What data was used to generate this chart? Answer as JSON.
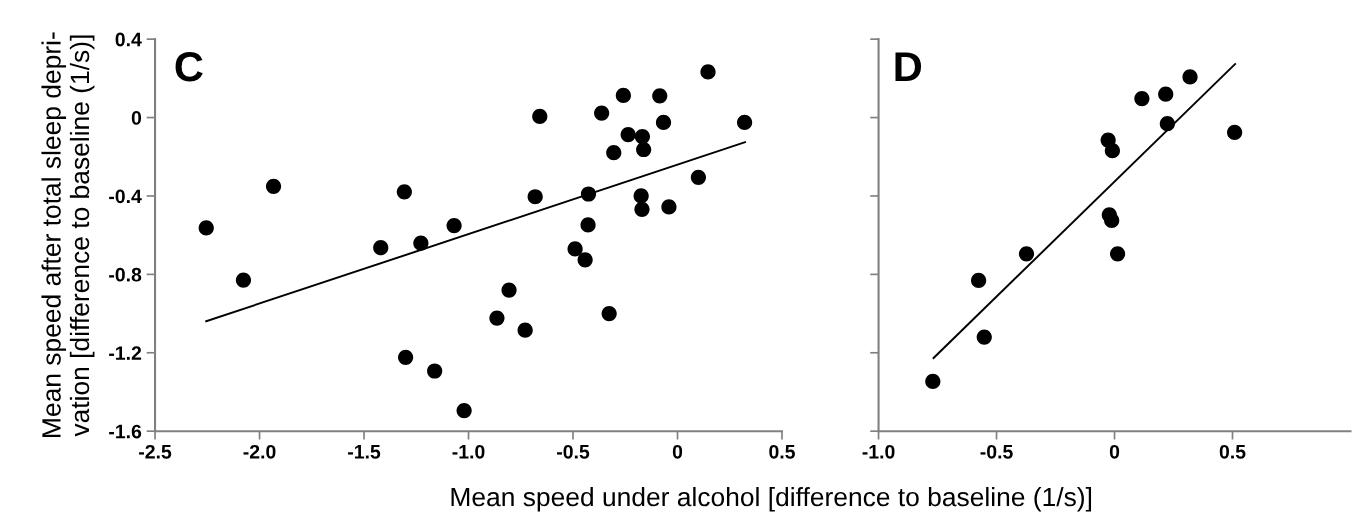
{
  "chart_data": [
    {
      "type": "scatter",
      "title": "C",
      "xlabel": "Mean speed under alcohol [difference to baseline (1/s)]",
      "ylabel": "Mean speed after total sleep depri-\nvation [difference to baseline (1/s)]",
      "xlim": [
        -2.5,
        0.5
      ],
      "xticks": [
        {
          "value": -2.5,
          "label": "-2.5"
        },
        {
          "value": -2.0,
          "label": "-2.0"
        },
        {
          "value": -1.5,
          "label": "-1.5"
        },
        {
          "value": -1.0,
          "label": "-1.0"
        },
        {
          "value": -0.5,
          "label": "-0.5"
        },
        {
          "value": 0,
          "label": "0"
        },
        {
          "value": 0.5,
          "label": "0.5"
        }
      ],
      "ylim": [
        -1.6,
        0.4
      ],
      "yticks": [
        {
          "value": -1.6,
          "label": "-1.6"
        },
        {
          "value": -1.2,
          "label": "-1.2"
        },
        {
          "value": -0.8,
          "label": "-0.8"
        },
        {
          "value": -0.4,
          "label": "-0.4"
        },
        {
          "value": 0,
          "label": "0"
        },
        {
          "value": 0.4,
          "label": "0.4"
        }
      ],
      "grid": false,
      "series": [
        {
          "marker": "circle",
          "color": "#000000",
          "x": [
            -2.255,
            -2.077,
            -1.933,
            -1.42,
            -1.307,
            -1.228,
            -1.069,
            -1.301,
            -1.162,
            -1.021,
            -0.864,
            -0.806,
            -0.729,
            -0.681,
            -0.659,
            -0.49,
            -0.442,
            -0.428,
            -0.426,
            -0.363,
            -0.327,
            -0.305,
            -0.259,
            -0.236,
            -0.174,
            -0.17,
            -0.168,
            -0.162,
            -0.085,
            -0.067,
            -0.041,
            0.1,
            0.146,
            0.321
          ],
          "values": [
            -0.563,
            -0.829,
            -0.351,
            -0.664,
            -0.379,
            -0.641,
            -0.551,
            -1.223,
            -1.293,
            -1.495,
            -1.023,
            -0.88,
            -1.085,
            -0.404,
            0.006,
            -0.67,
            -0.726,
            -0.548,
            -0.39,
            0.023,
            -1.0,
            -0.179,
            0.113,
            -0.087,
            -0.4,
            -0.468,
            -0.097,
            -0.163,
            0.111,
            -0.025,
            -0.456,
            -0.305,
            0.233,
            -0.025
          ]
        },
        {
          "type": "line",
          "marker": "none",
          "color": "#000000",
          "x": [
            -2.255,
            0.323
          ],
          "values": [
            -1.039,
            -0.126
          ]
        }
      ]
    },
    {
      "type": "scatter",
      "title": "D",
      "tick_labels": "x",
      "xlim": [
        -1.0,
        1.0
      ],
      "xticks": [
        {
          "value": -1.0,
          "label": "-1.0"
        },
        {
          "value": -0.5,
          "label": "-0.5"
        },
        {
          "value": 0,
          "label": "0"
        },
        {
          "value": 0.5,
          "label": "0.5"
        }
      ],
      "ylim": [
        -1.6,
        0.4
      ],
      "yticks": [
        -1.6,
        -1.2,
        -0.8,
        -0.4,
        0,
        0.4
      ],
      "grid": false,
      "series": [
        {
          "marker": "circle",
          "color": "#000000",
          "x": [
            -0.77,
            -0.576,
            -0.552,
            -0.373,
            -0.027,
            -0.009,
            -0.022,
            -0.012,
            0.013,
            0.116,
            0.217,
            0.224,
            0.32,
            0.509
          ],
          "values": [
            -1.346,
            -0.831,
            -1.12,
            -0.695,
            -0.115,
            -0.169,
            -0.497,
            -0.525,
            -0.695,
            0.097,
            0.119,
            -0.031,
            0.207,
            -0.076
          ]
        },
        {
          "type": "line",
          "marker": "none",
          "color": "#000000",
          "x": [
            -0.767,
            0.511
          ],
          "values": [
            -1.227,
            0.273
          ]
        }
      ]
    }
  ]
}
